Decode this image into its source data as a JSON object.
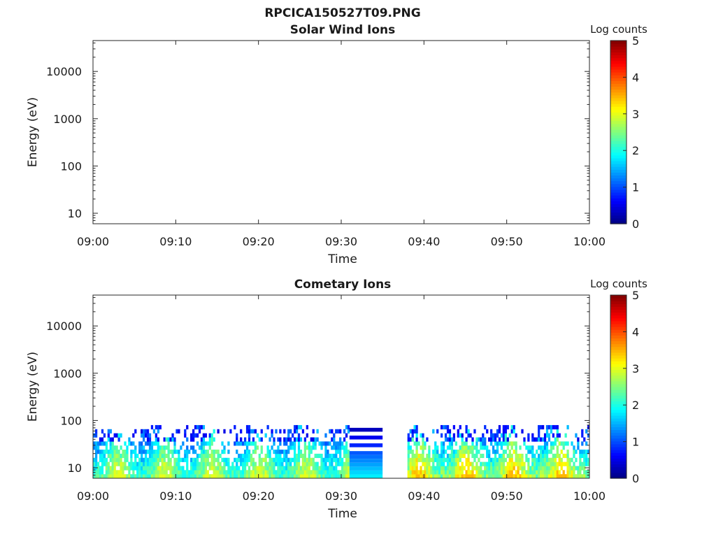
{
  "figure": {
    "title": "RPCICA150527T09.PNG"
  },
  "colors": {
    "colormap": "jet",
    "axis": "#262626"
  },
  "chart_data": [
    {
      "type": "heatmap",
      "title": "Solar Wind Ions",
      "xlabel": "Time",
      "ylabel": "Energy (eV)",
      "x_range": [
        "09:00",
        "10:00"
      ],
      "x_ticks": [
        "09:00",
        "09:10",
        "09:20",
        "09:30",
        "09:40",
        "09:50",
        "10:00"
      ],
      "y_scale": "log",
      "y_range": [
        6,
        45000
      ],
      "y_ticks": [
        "10",
        "100",
        "1000",
        "10000"
      ],
      "colorbar": {
        "label": "Log counts",
        "range": [
          0,
          5
        ],
        "ticks": [
          "0",
          "1",
          "2",
          "3",
          "4",
          "5"
        ]
      },
      "data_segments": []
    },
    {
      "type": "heatmap",
      "title": "Cometary Ions",
      "xlabel": "Time",
      "ylabel": "Energy (eV)",
      "x_range": [
        "09:00",
        "10:00"
      ],
      "x_ticks": [
        "09:00",
        "09:10",
        "09:20",
        "09:30",
        "09:40",
        "09:50",
        "10:00"
      ],
      "y_scale": "log",
      "y_range": [
        6,
        45000
      ],
      "y_ticks": [
        "10",
        "100",
        "1000",
        "10000"
      ],
      "colorbar": {
        "label": "Log counts",
        "range": [
          0,
          5
        ],
        "ticks": [
          "0",
          "1",
          "2",
          "3",
          "4",
          "5"
        ]
      },
      "data_segments": [
        {
          "start": "09:00",
          "end": "09:31",
          "energy_range_ev": [
            6,
            80
          ],
          "log_counts_range": [
            0.5,
            3.0
          ],
          "pattern": "variable"
        },
        {
          "start": "09:31",
          "end": "09:35",
          "energy_range_ev": [
            6,
            70
          ],
          "log_counts_range": [
            0.3,
            1.8
          ],
          "pattern": "horizontal bands"
        },
        {
          "start": "09:38",
          "end": "10:00",
          "energy_range_ev": [
            6,
            80
          ],
          "log_counts_range": [
            0.5,
            3.5
          ],
          "pattern": "variable"
        }
      ]
    }
  ]
}
